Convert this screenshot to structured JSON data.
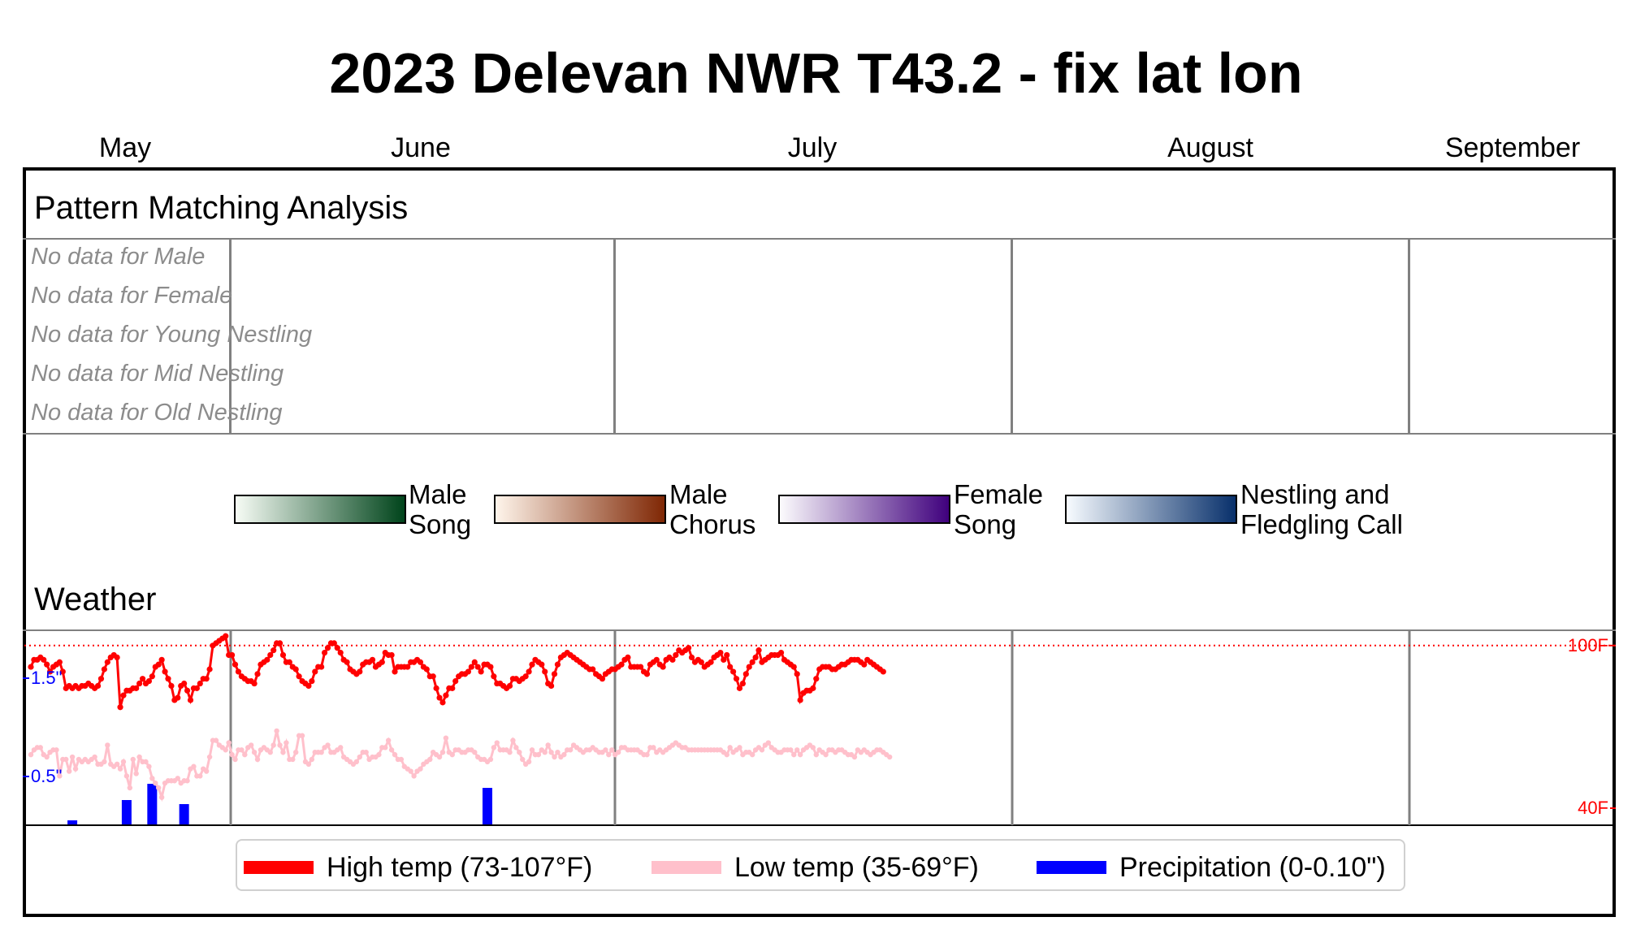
{
  "title": "2023 Delevan NWR T43.2 - fix lat lon",
  "months": [
    "May",
    "June",
    "July",
    "August",
    "September"
  ],
  "sections": {
    "pattern": "Pattern Matching Analysis",
    "weather": "Weather"
  },
  "no_data": [
    "No data for Male",
    "No data for Female",
    "No data for Young Nestling",
    "No data for Mid Nestling",
    "No data for Old Nestling"
  ],
  "colorbars": [
    {
      "label": "Male\nSong",
      "from": "#f7fcf5",
      "to": "#00441b"
    },
    {
      "label": "Male\nChorus",
      "from": "#fff5eb",
      "to": "#7f2704"
    },
    {
      "label": "Female\nSong",
      "from": "#fcfbfd",
      "to": "#3f007d"
    },
    {
      "label": "Nestling and\nFledgling Call",
      "from": "#f7fbff",
      "to": "#08306b"
    }
  ],
  "legend": {
    "high": "High temp (73-107°F)",
    "low": "Low temp (35-69°F)",
    "precip": "Precipitation (0-0.10\")"
  },
  "colors": {
    "high": "#ff0000",
    "low": "#ffc0cb",
    "precip": "#0000ff",
    "grid": "#808080"
  },
  "chart_data": {
    "type": "line",
    "x_start": "2023-05-01",
    "y_temp_range": [
      35,
      107
    ],
    "y_precip_range": [
      0,
      0.1
    ],
    "temp_tick_labels": [
      "100F",
      "40F"
    ],
    "precip_tick_labels": [
      "1.5\"",
      "0.5\""
    ],
    "reference_line_temp": 100,
    "series": [
      {
        "name": "High temp (73-107°F)",
        "values": [
          91,
          94,
          94,
          95,
          94,
          92,
          89,
          91,
          92,
          93,
          89,
          82,
          83,
          82,
          83,
          82,
          83,
          83,
          84,
          83,
          82,
          83,
          86,
          90,
          93,
          95,
          96,
          95,
          74,
          79,
          81,
          81,
          82,
          82,
          84,
          86,
          84,
          85,
          87,
          91,
          92,
          94,
          89,
          86,
          83,
          77,
          78,
          83,
          84,
          81,
          77,
          82,
          82,
          84,
          86,
          86,
          90,
          100,
          101,
          102,
          103,
          104,
          96,
          96,
          92,
          89,
          87,
          86,
          85,
          85,
          84,
          88,
          92,
          93,
          94,
          96,
          98,
          101,
          101,
          96,
          93,
          93,
          91,
          90,
          87,
          85,
          84,
          83,
          85,
          89,
          91,
          91,
          97,
          99,
          101,
          101,
          99,
          97,
          94,
          93,
          90,
          89,
          88,
          89,
          92,
          93,
          93,
          94,
          91,
          92,
          93,
          97,
          96,
          96,
          89,
          91,
          91,
          91,
          91,
          93,
          93,
          94,
          93,
          91,
          90,
          87,
          87,
          82,
          78,
          76,
          79,
          82,
          82,
          85,
          87,
          88,
          88,
          89,
          91,
          93,
          91,
          89,
          92,
          92,
          91,
          87,
          84,
          84,
          83,
          82,
          83,
          86,
          86,
          85,
          86,
          87,
          89,
          92,
          94,
          93,
          92,
          89,
          84,
          83,
          88,
          92,
          95,
          96,
          97,
          96,
          95,
          94,
          93,
          92,
          91,
          90,
          90,
          88,
          87,
          86,
          88,
          89,
          90,
          90,
          91,
          92,
          94,
          95,
          91,
          91,
          91,
          91,
          89,
          88,
          92,
          93,
          94,
          92,
          91,
          94,
          95,
          94,
          96,
          98,
          97,
          98,
          99,
          95,
          93,
          94,
          93,
          91,
          92,
          93,
          95,
          96,
          97,
          94,
          96,
          91,
          89,
          86,
          82,
          84,
          88,
          91,
          93,
          95,
          98,
          93,
          94,
          95,
          96,
          96,
          96,
          97,
          94,
          93,
          92,
          91,
          88,
          77,
          80,
          81,
          81,
          82,
          86,
          90,
          91,
          91,
          91,
          90,
          90,
          91,
          92,
          92,
          93,
          94,
          94,
          94,
          93,
          92,
          94,
          93,
          92,
          91,
          90,
          89
        ],
        "color": "#ff0000"
      },
      {
        "name": "Low temp (35-69°F)",
        "values": [
          54,
          56,
          57,
          57,
          54,
          53,
          55,
          56,
          56,
          45,
          52,
          52,
          47,
          53,
          48,
          52,
          51,
          52,
          51,
          52,
          53,
          50,
          50,
          51,
          58,
          50,
          49,
          50,
          48,
          51,
          45,
          40,
          52,
          46,
          53,
          51,
          51,
          49,
          44,
          42,
          40,
          36,
          42,
          43,
          43,
          43,
          44,
          42,
          43,
          43,
          48,
          49,
          45,
          45,
          48,
          47,
          53,
          60,
          60,
          58,
          57,
          56,
          59,
          54,
          52,
          56,
          56,
          54,
          57,
          58,
          55,
          52,
          56,
          57,
          56,
          55,
          58,
          64,
          58,
          55,
          59,
          52,
          52,
          55,
          62,
          62,
          51,
          50,
          52,
          55,
          55,
          55,
          57,
          58,
          55,
          55,
          56,
          57,
          53,
          52,
          51,
          50,
          51,
          53,
          55,
          55,
          52,
          53,
          53,
          54,
          57,
          57,
          60,
          56,
          54,
          52,
          52,
          49,
          48,
          47,
          45,
          47,
          48,
          50,
          51,
          52,
          55,
          54,
          53,
          55,
          61,
          55,
          54,
          56,
          56,
          55,
          55,
          56,
          56,
          55,
          53,
          52,
          52,
          51,
          52,
          57,
          59,
          56,
          56,
          56,
          55,
          60,
          57,
          55,
          52,
          50,
          51,
          56,
          54,
          54,
          56,
          55,
          58,
          55,
          53,
          55,
          53,
          54,
          56,
          56,
          58,
          57,
          56,
          55,
          56,
          56,
          57,
          56,
          55,
          55,
          56,
          54,
          56,
          54,
          55,
          57,
          57,
          56,
          56,
          56,
          56,
          55,
          54,
          54,
          57,
          57,
          55,
          56,
          55,
          56,
          57,
          58,
          59,
          58,
          57,
          57,
          56,
          56,
          56,
          56,
          56,
          56,
          56,
          56,
          56,
          56,
          56,
          55,
          54,
          57,
          55,
          56,
          57,
          54,
          55,
          55,
          54,
          56,
          57,
          56,
          58,
          59,
          57,
          56,
          55,
          55,
          56,
          56,
          56,
          54,
          56,
          54,
          56,
          57,
          58,
          57,
          54,
          56,
          55,
          54,
          56,
          56,
          55,
          56,
          56,
          55,
          54,
          54,
          53,
          56,
          55,
          56,
          55,
          54,
          55,
          56,
          56,
          55,
          54,
          53
        ],
        "color": "#ffc0cb"
      },
      {
        "name": "Precipitation (0-0.10\")",
        "values": {
          "13": 0.005,
          "30": 0.03,
          "38": 0.05,
          "48": 0.025,
          "143": 0.045
        },
        "color": "#0000ff"
      }
    ]
  }
}
